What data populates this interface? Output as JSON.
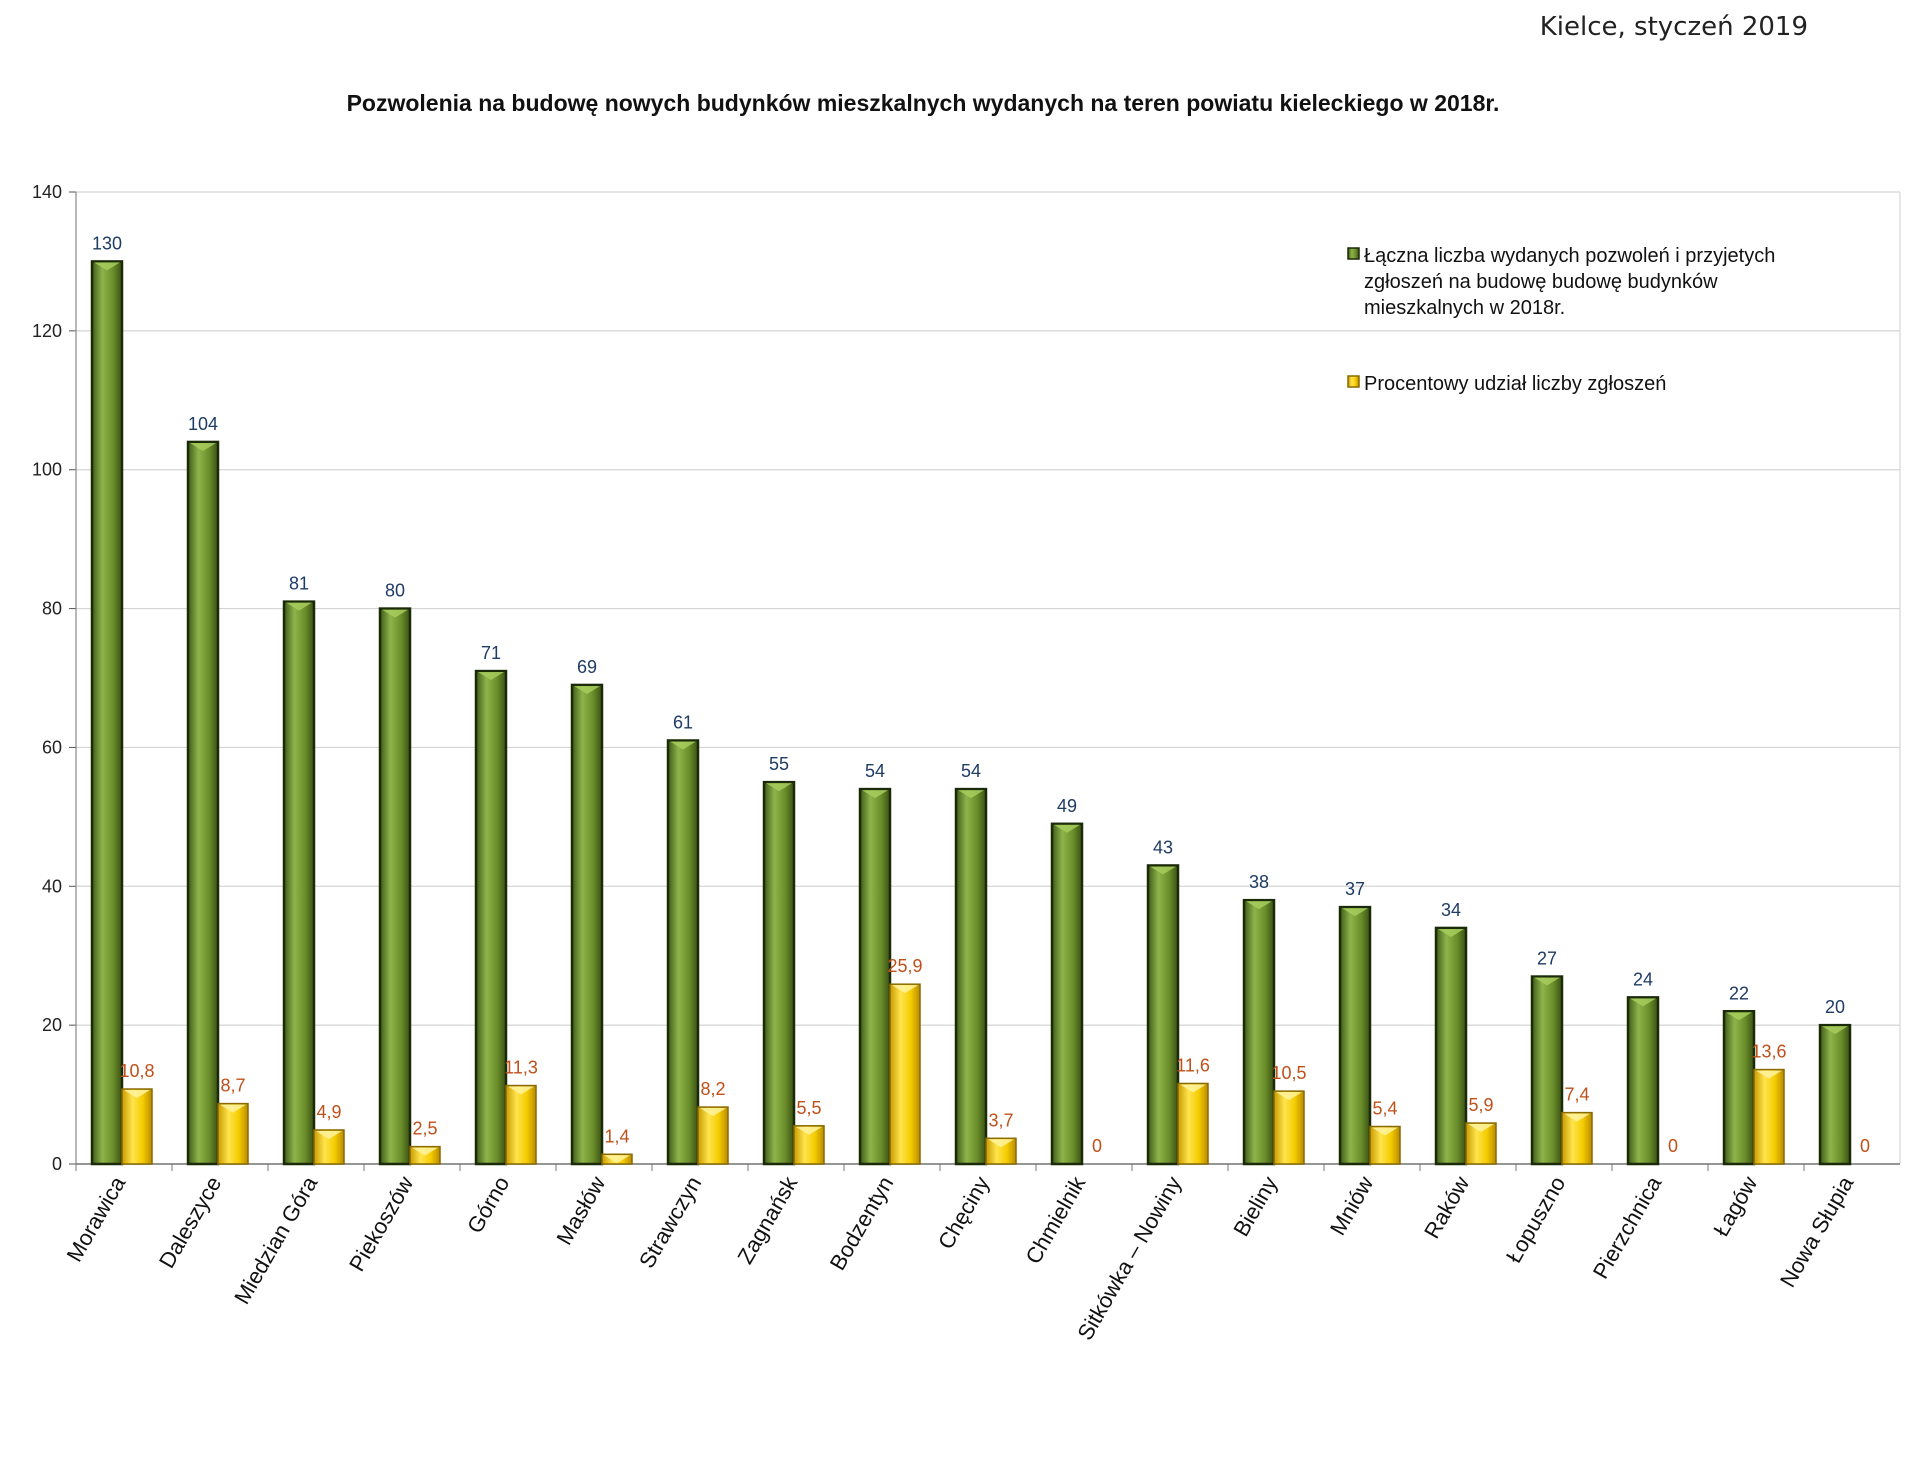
{
  "header": {
    "date_line": "Kielce, styczeń 2019"
  },
  "chart_data": {
    "type": "bar",
    "title": "Pozwolenia na budowę nowych budynków mieszkalnych wydanych na teren powiatu kieleckiego w 2018r.",
    "xlabel": "",
    "ylabel": "",
    "ylim": [
      0,
      140
    ],
    "yticks": [
      0,
      20,
      40,
      60,
      80,
      100,
      120,
      140
    ],
    "grid": true,
    "legend_position": "top-right",
    "categories": [
      "Morawica",
      "Daleszyce",
      "Miedzian Góra",
      "Piekoszów",
      "Górno",
      "Masłów",
      "Strawczyn",
      "Zagnańsk",
      "Bodzentyn",
      "Chęciny",
      "Chmielnik",
      "Sitkówka – Nowiny",
      "Bieliny",
      "Mniów",
      "Raków",
      "Łopuszno",
      "Pierzchnica",
      "Łagów",
      "Nowa Słupia"
    ],
    "series": [
      {
        "name": "Łączna liczba wydanych pozwoleń i przyjetych zgłoszeń na budowę budowę budynków mieszkalnych w 2018r.",
        "color": "#6b8e2a",
        "values": [
          130,
          104,
          81,
          80,
          71,
          69,
          61,
          55,
          54,
          54,
          49,
          43,
          38,
          37,
          34,
          27,
          24,
          22,
          20
        ],
        "labels": [
          "130",
          "104",
          "81",
          "80",
          "71",
          "69",
          "61",
          "55",
          "54",
          "54",
          "49",
          "43",
          "38",
          "37",
          "34",
          "27",
          "24",
          "22",
          "20"
        ]
      },
      {
        "name": "Procentowy udział liczby zgłoszeń",
        "color": "#f5cc00",
        "values": [
          10.8,
          8.7,
          4.9,
          2.5,
          11.3,
          1.4,
          8.2,
          5.5,
          25.9,
          3.7,
          0,
          11.6,
          10.5,
          5.4,
          5.9,
          7.4,
          0,
          13.6,
          0
        ],
        "labels": [
          "10,8",
          "8,7",
          "4,9",
          "2,5",
          "11,3",
          "1,4",
          "8,2",
          "5,5",
          "25,9",
          "3,7",
          "0",
          "11,6",
          "10,5",
          "5,4",
          "5,9",
          "7,4",
          "0",
          "13,6",
          "0"
        ]
      }
    ],
    "legend_lines": [
      [
        "Łączna liczba wydanych pozwoleń i przyjetych",
        "zgłoszeń na budowę budowę budynków",
        "mieszkalnych w 2018r."
      ],
      [
        "Procentowy udział liczby zgłoszeń"
      ]
    ]
  }
}
